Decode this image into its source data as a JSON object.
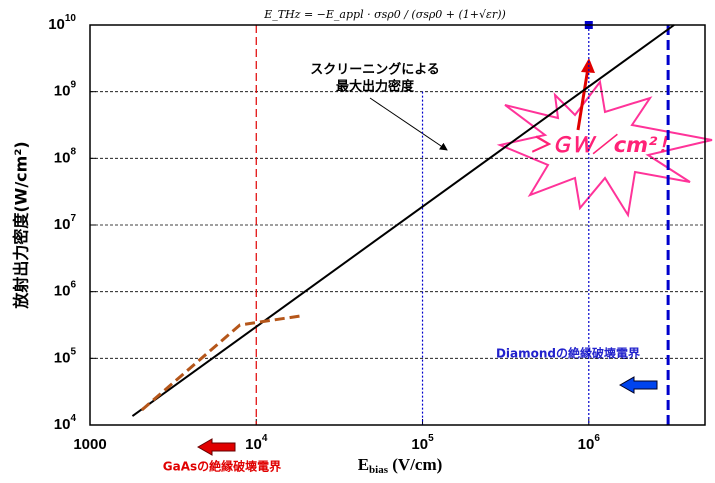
{
  "chart_data": {
    "type": "line",
    "log_x": true,
    "log_y": true,
    "x_label": {
      "main": "E",
      "sub": "bias",
      "rest": " (V/cm)"
    },
    "y_label": "放射出力密度(W/cm²)",
    "xlim": [
      1000,
      5000000
    ],
    "ylim": [
      10000,
      10000000000
    ],
    "xticks": [
      1000,
      {
        "value": 10000,
        "label": "10",
        "sup": "4"
      },
      {
        "value": 100000,
        "label": "10",
        "sup": "5"
      },
      {
        "value": 1000000,
        "label": "10",
        "sup": "6"
      }
    ],
    "yticks": [
      {
        "value": 10000,
        "label": "10",
        "sup": "4"
      },
      {
        "value": 100000,
        "label": "10",
        "sup": "5"
      },
      {
        "value": 1000000,
        "label": "10",
        "sup": "6"
      },
      {
        "value": 10000000,
        "label": "10",
        "sup": "7"
      },
      {
        "value": 100000000,
        "label": "10",
        "sup": "8"
      },
      {
        "value": 1000000000,
        "label": "10",
        "sup": "9"
      },
      {
        "value": 10000000000,
        "label": "10",
        "sup": "10"
      }
    ],
    "grid": true,
    "series": [
      {
        "color": "#000000",
        "style": "solid",
        "x": [
          1800,
          3260000
        ],
        "values": [
          13600,
          10000000000
        ]
      },
      {
        "color": "#b5561a",
        "style": "dashed",
        "x": [
          2050,
          7970,
          18200
        ],
        "values": [
          16800,
          316000,
          430000
        ]
      }
    ],
    "vlines": [
      {
        "x": 10000,
        "color": "#e00000",
        "style": "dashed"
      },
      {
        "x": 100000,
        "color": "#0000cc",
        "style": "dotted",
        "top": 1000000000
      },
      {
        "x": 1000000,
        "color": "#0000cc",
        "style": "dotted",
        "top": 10000000000
      },
      {
        "x": 3000000,
        "color": "#0000cc",
        "style": "bold-dashed",
        "top": 10000000000
      }
    ],
    "marker": {
      "x": 1000000,
      "y": 10000000000,
      "color": "#0000cc"
    },
    "formula": "E_THz = −E_appl · σsρ0 / (σsρ0 + (1+√εr))",
    "annotations": {
      "screening": [
        "スクリーニングによる",
        "最大出力密度"
      ],
      "burst": "＞ＧＷ／cm²！",
      "diamond": "Diamondの絶縁破壊電界",
      "gaas": "GaAsの絶縁破壊電界"
    }
  }
}
